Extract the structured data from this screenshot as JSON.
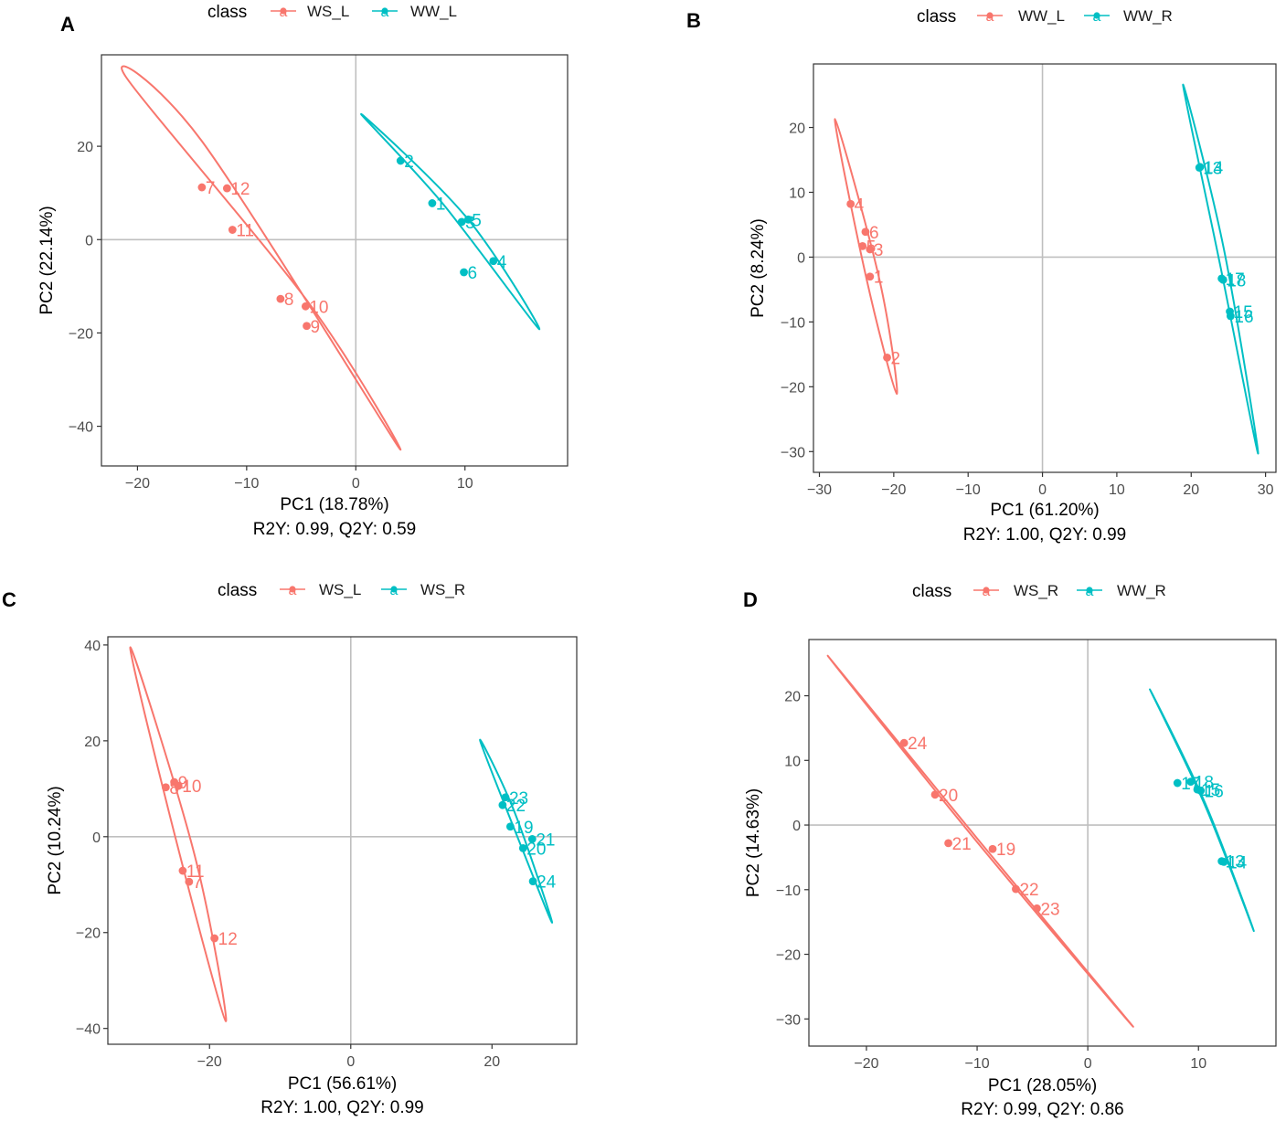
{
  "colors": {
    "red": "#F8766D",
    "teal": "#00BFC4",
    "frame": "#333333",
    "zero": "#bfbfbf",
    "tick": "#4d4d4d"
  },
  "legend_glyph": "a",
  "chart_data": [
    {
      "type": "scatter",
      "panel": "A",
      "legend_title": "class",
      "groups": [
        "WS_L",
        "WW_L"
      ],
      "xlabel": "PC1 (18.78%)",
      "ylabel": "PC2 (22.14%)",
      "subtitle": "R2Y: 0.99, Q2Y: 0.59",
      "xlim": [
        -23.3,
        19.4
      ],
      "ylim": [
        -48.5,
        39.6
      ],
      "xticks": [
        -20,
        -10,
        0,
        10
      ],
      "yticks": [
        -40,
        -20,
        0,
        20
      ],
      "points": [
        {
          "label": "7",
          "group": 0,
          "x": -14.1,
          "y": 11.2
        },
        {
          "label": "12",
          "group": 0,
          "x": -11.8,
          "y": 11.0
        },
        {
          "label": "11",
          "group": 0,
          "x": -11.3,
          "y": 2.1
        },
        {
          "label": "8",
          "group": 0,
          "x": -6.9,
          "y": -12.7
        },
        {
          "label": "10",
          "group": 0,
          "x": -4.6,
          "y": -14.3
        },
        {
          "label": "9",
          "group": 0,
          "x": -4.5,
          "y": -18.5
        },
        {
          "label": "2",
          "group": 1,
          "x": 4.1,
          "y": 16.9
        },
        {
          "label": "1",
          "group": 1,
          "x": 7.0,
          "y": 7.8
        },
        {
          "label": "3",
          "group": 1,
          "x": 9.7,
          "y": 3.8
        },
        {
          "label": "5",
          "group": 1,
          "x": 10.3,
          "y": 4.3
        },
        {
          "label": "6",
          "group": 1,
          "x": 9.9,
          "y": -7.0
        },
        {
          "label": "4",
          "group": 1,
          "x": 12.6,
          "y": -4.6
        }
      ],
      "ellipses": [
        {
          "group": 0,
          "points": [
            [
              -21.1,
              35.0
            ],
            [
              -4.2,
              -13.9
            ],
            [
              3.8,
              -44.1
            ],
            [
              -14.1,
              21.1
            ]
          ]
        },
        {
          "group": 1,
          "points": [
            [
              0.5,
              26.9
            ],
            [
              10.2,
              4.6
            ],
            [
              16.8,
              -19.2
            ],
            [
              7.9,
              7.9
            ]
          ]
        }
      ]
    },
    {
      "type": "scatter",
      "panel": "B",
      "legend_title": "class",
      "groups": [
        "WW_L",
        "WW_R"
      ],
      "xlabel": "PC1 (61.20%)",
      "ylabel": "PC2 (8.24%)",
      "subtitle": "R2Y: 1.00, Q2Y: 0.99",
      "xlim": [
        -30.8,
        31.4
      ],
      "ylim": [
        -33.2,
        29.8
      ],
      "xticks": [
        -30,
        -20,
        -10,
        0,
        10,
        20,
        30
      ],
      "yticks": [
        -30,
        -20,
        -10,
        0,
        10,
        20
      ],
      "points": [
        {
          "label": "4",
          "group": 0,
          "x": -25.8,
          "y": 8.2
        },
        {
          "label": "6",
          "group": 0,
          "x": -23.8,
          "y": 3.9
        },
        {
          "label": "5",
          "group": 0,
          "x": -24.2,
          "y": 1.7
        },
        {
          "label": "3",
          "group": 0,
          "x": -23.2,
          "y": 1.2
        },
        {
          "label": "1",
          "group": 0,
          "x": -23.2,
          "y": -3.0
        },
        {
          "label": "2",
          "group": 0,
          "x": -20.9,
          "y": -15.5
        },
        {
          "label": "13",
          "group": 1,
          "x": 21.1,
          "y": 13.8
        },
        {
          "label": "14",
          "group": 1,
          "x": 21.2,
          "y": 13.9
        },
        {
          "label": "17",
          "group": 1,
          "x": 24.1,
          "y": -3.3
        },
        {
          "label": "18",
          "group": 1,
          "x": 24.3,
          "y": -3.5
        },
        {
          "label": "15",
          "group": 1,
          "x": 25.2,
          "y": -8.4
        },
        {
          "label": "16",
          "group": 1,
          "x": 25.3,
          "y": -9.1
        }
      ],
      "ellipses": [
        {
          "group": 0,
          "points": [
            [
              -27.9,
              21.3
            ],
            [
              -23.7,
              -3.2
            ],
            [
              -19.6,
              -21.1
            ],
            [
              -21.9,
              -3.6
            ]
          ]
        },
        {
          "group": 1,
          "points": [
            [
              18.9,
              26.6
            ],
            [
              24.0,
              -1.8
            ],
            [
              29.0,
              -30.3
            ],
            [
              24.4,
              1.2
            ]
          ]
        }
      ]
    },
    {
      "type": "scatter",
      "panel": "C",
      "legend_title": "class",
      "groups": [
        "WS_L",
        "WS_R"
      ],
      "xlabel": "PC1 (56.61%)",
      "ylabel": "PC2 (10.24%)",
      "subtitle": "R2Y: 1.00, Q2Y: 0.99",
      "xlim": [
        -34.4,
        32.0
      ],
      "ylim": [
        -43.3,
        41.7
      ],
      "xticks": [
        -20,
        0,
        20
      ],
      "yticks": [
        -40,
        -20,
        0,
        20,
        40
      ],
      "points": [
        {
          "label": "9",
          "group": 0,
          "x": -25.0,
          "y": 11.4
        },
        {
          "label": "10",
          "group": 0,
          "x": -24.4,
          "y": 10.6
        },
        {
          "label": "8",
          "group": 0,
          "x": -26.2,
          "y": 10.3
        },
        {
          "label": "11",
          "group": 0,
          "x": -23.8,
          "y": -7.1
        },
        {
          "label": "7",
          "group": 0,
          "x": -22.9,
          "y": -9.4
        },
        {
          "label": "12",
          "group": 0,
          "x": -19.3,
          "y": -21.2
        },
        {
          "label": "23",
          "group": 1,
          "x": 21.9,
          "y": 8.2
        },
        {
          "label": "22",
          "group": 1,
          "x": 21.5,
          "y": 6.6
        },
        {
          "label": "19",
          "group": 1,
          "x": 22.6,
          "y": 2.1
        },
        {
          "label": "21",
          "group": 1,
          "x": 25.7,
          "y": -0.5
        },
        {
          "label": "20",
          "group": 1,
          "x": 24.4,
          "y": -2.4
        },
        {
          "label": "24",
          "group": 1,
          "x": 25.8,
          "y": -9.3
        }
      ],
      "ellipses": [
        {
          "group": 0,
          "points": [
            [
              -31.2,
              39.5
            ],
            [
              -22.1,
              -3.9
            ],
            [
              -17.7,
              -38.5
            ],
            [
              -24.8,
              -0.4
            ]
          ]
        },
        {
          "group": 1,
          "points": [
            [
              18.3,
              20.1
            ],
            [
              23.2,
              5.1
            ],
            [
              28.5,
              -17.8
            ],
            [
              24.4,
              -3.0
            ]
          ]
        }
      ]
    },
    {
      "type": "scatter",
      "panel": "D",
      "legend_title": "class",
      "groups": [
        "WS_R",
        "WW_R"
      ],
      "xlabel": "PC1 (28.05%)",
      "ylabel": "PC2 (14.63%)",
      "subtitle": "R2Y: 0.99, Q2Y: 0.86",
      "xlim": [
        -25.2,
        17.0
      ],
      "ylim": [
        -34.2,
        28.7
      ],
      "xticks": [
        -20,
        -10,
        0,
        10
      ],
      "yticks": [
        -30,
        -20,
        -10,
        0,
        10,
        20
      ],
      "points": [
        {
          "label": "24",
          "group": 0,
          "x": -16.6,
          "y": 12.7
        },
        {
          "label": "20",
          "group": 0,
          "x": -13.8,
          "y": 4.7
        },
        {
          "label": "21",
          "group": 0,
          "x": -12.6,
          "y": -2.8
        },
        {
          "label": "19",
          "group": 0,
          "x": -8.6,
          "y": -3.7
        },
        {
          "label": "22",
          "group": 0,
          "x": -6.5,
          "y": -9.9
        },
        {
          "label": "23",
          "group": 0,
          "x": -4.6,
          "y": -12.9
        },
        {
          "label": "17",
          "group": 1,
          "x": 8.1,
          "y": 6.5
        },
        {
          "label": "18",
          "group": 1,
          "x": 9.3,
          "y": 6.7
        },
        {
          "label": "15",
          "group": 1,
          "x": 9.9,
          "y": 5.5
        },
        {
          "label": "16",
          "group": 1,
          "x": 10.2,
          "y": 5.3
        },
        {
          "label": "13",
          "group": 1,
          "x": 12.1,
          "y": -5.6
        },
        {
          "label": "14",
          "group": 1,
          "x": 12.3,
          "y": -5.7
        }
      ],
      "ellipses": [
        {
          "group": 0,
          "points": [
            [
              -23.5,
              26.2
            ],
            [
              -9.7,
              -2.7
            ],
            [
              4.1,
              -31.2
            ],
            [
              -10.3,
              -2.0
            ]
          ]
        },
        {
          "group": 1,
          "points": [
            [
              5.6,
              21.0
            ],
            [
              10.6,
              3.4
            ],
            [
              15.0,
              -16.4
            ],
            [
              10.6,
              3.0
            ]
          ]
        }
      ]
    }
  ]
}
